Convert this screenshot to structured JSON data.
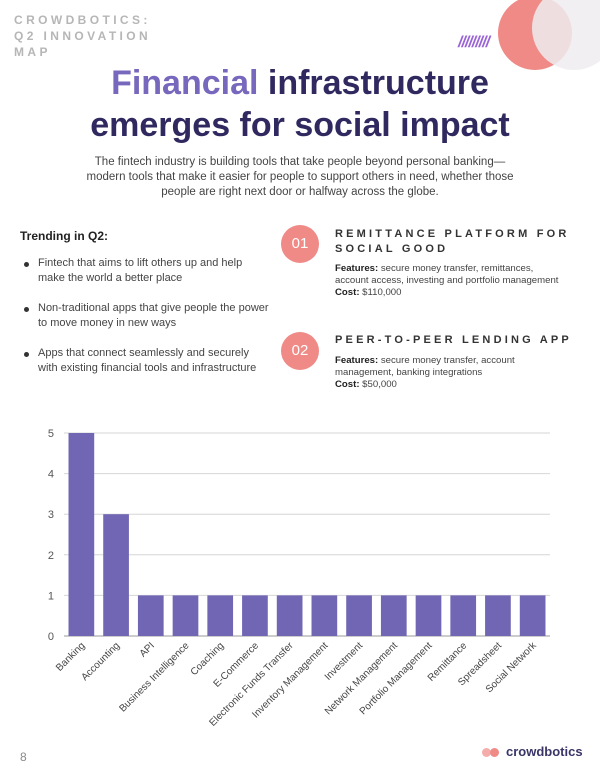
{
  "header": {
    "kicker": "CROWDBOTICS: Q2 INNOVATION MAP",
    "hatch": "/////////",
    "title_accent": "Financial",
    "title_rest_line1": " infrastructure",
    "title_line2": "emerges for social impact",
    "intro": "The fintech industry is building tools that take people beyond personal banking—modern tools that make it easier for people to support others in need, whether those people are right next door or halfway across the globe."
  },
  "trending": {
    "heading": "Trending in Q2:",
    "items": [
      "Fintech that aims to lift others up and help make the world a better place",
      "Non-traditional apps that give people the power to move money in new ways",
      "Apps that connect seamlessly and securely with existing financial tools and infrastructure"
    ]
  },
  "features": [
    {
      "number": "01",
      "title": "REMITTANCE PLATFORM FOR SOCIAL GOOD",
      "features_label": "Features:",
      "features_text": " secure money transfer, remittances, account access, investing and portfolio management",
      "cost_label": "Cost:",
      "cost_text": " $110,000"
    },
    {
      "number": "02",
      "title": "PEER-TO-PEER LENDING APP",
      "features_label": "Features:",
      "features_text": " secure money transfer, account management, banking integrations",
      "cost_label": "Cost:",
      "cost_text": " $50,000"
    }
  ],
  "chart_data": {
    "type": "bar",
    "categories": [
      "Banking",
      "Accounting",
      "API",
      "Business Intelligence",
      "Coaching",
      "E-Commerce",
      "Electronic Funds Transfer",
      "Inventory Management",
      "Investment",
      "Network Management",
      "Portfolio Management",
      "Remittance",
      "Spreadsheet",
      "Social Network"
    ],
    "values": [
      5,
      3,
      1,
      1,
      1,
      1,
      1,
      1,
      1,
      1,
      1,
      1,
      1,
      1
    ],
    "ylim": [
      0,
      5
    ],
    "yticks": [
      0,
      1,
      2,
      3,
      4,
      5
    ],
    "grid": true,
    "bar_color": "#7066b4"
  },
  "footer": {
    "page_number": "8",
    "logo_text": "crowdbotics"
  },
  "colors": {
    "accent_coral": "#ef8a86",
    "accent_purple": "#7767bd",
    "title_navy": "#2f2960"
  }
}
